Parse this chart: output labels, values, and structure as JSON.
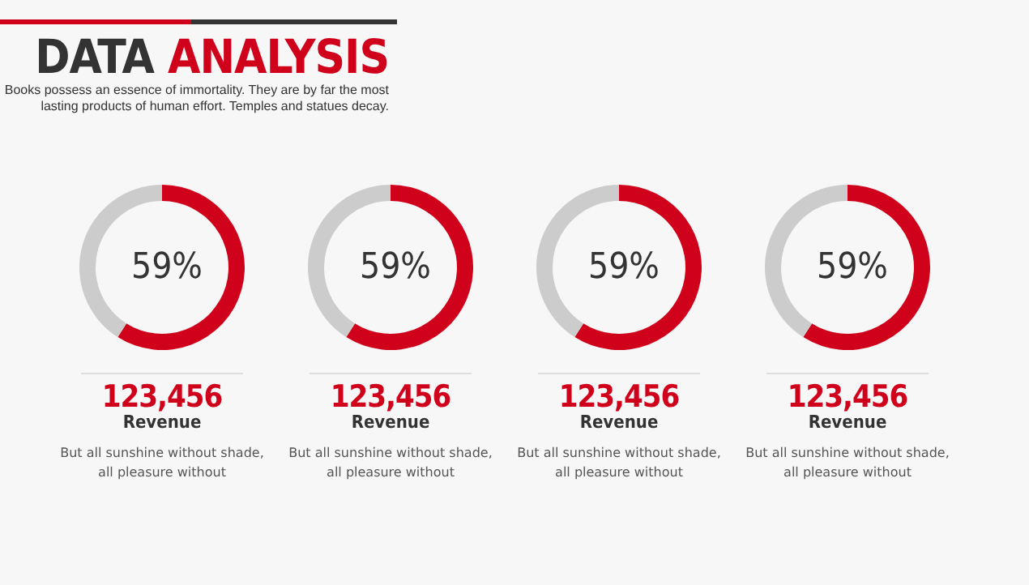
{
  "chart_data": [
    {
      "type": "donut",
      "title": "DATA ANALYSIS",
      "subtitle": "Books possess an essence of immortality. They are by far the most lasting products of human effort. Temples and statues decay.",
      "categories": [
        null,
        null
      ],
      "values": [
        59,
        41
      ],
      "colors": [
        "#d0021b",
        "#cccccc"
      ],
      "value_labels": [
        "59%",
        null
      ],
      "annotations": [
        "123,456",
        "Revenue",
        "But all sunshine without shade, all pleasure without"
      ]
    },
    {
      "type": "donut",
      "categories": [
        null,
        null
      ],
      "values": [
        59,
        41
      ],
      "colors": [
        "#d0021b",
        "#cccccc"
      ],
      "value_labels": [
        "59%",
        null
      ],
      "annotations": [
        "123,456",
        "Revenue",
        "But all sunshine without shade, all pleasure without"
      ]
    },
    {
      "type": "donut",
      "categories": [
        null,
        null
      ],
      "values": [
        59,
        41
      ],
      "colors": [
        "#d0021b",
        "#cccccc"
      ],
      "value_labels": [
        "59%",
        null
      ],
      "annotations": [
        "123,456",
        "Revenue",
        "But all sunshine without shade, all pleasure without"
      ]
    },
    {
      "type": "donut",
      "categories": [
        null,
        null
      ],
      "values": [
        59,
        41
      ],
      "colors": [
        "#d0021b",
        "#cccccc"
      ],
      "value_labels": [
        "59%",
        null
      ],
      "annotations": [
        "123,456",
        "Revenue",
        "But all sunshine without shade, all pleasure without"
      ]
    }
  ]
}
